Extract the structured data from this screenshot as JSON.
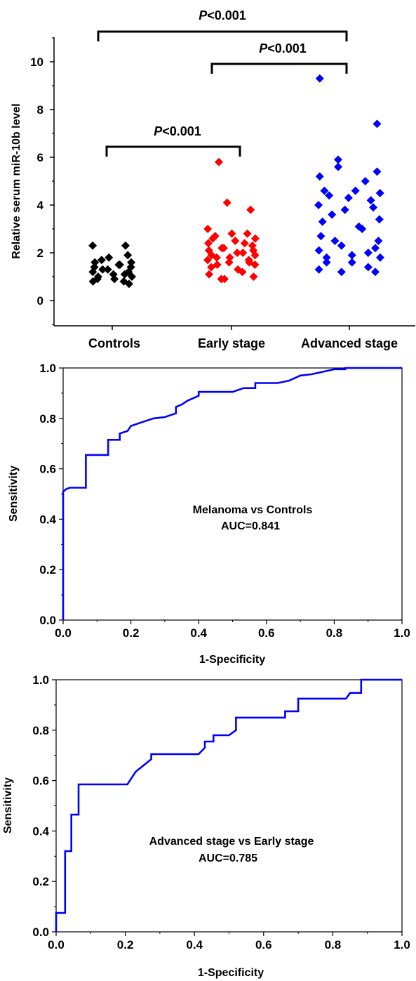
{
  "colors": {
    "controls": "#000000",
    "early_stage": "#ff0000",
    "advanced_stage": "#0000ff",
    "roc_line": "#0000ff",
    "axis": "#000000"
  },
  "chart_data": [
    {
      "type": "scatter",
      "ylabel": "Relative serum miR-10b level",
      "ylim": [
        -1,
        11
      ],
      "yticks": [
        0,
        2,
        4,
        6,
        8,
        10
      ],
      "categories": [
        "Controls",
        "Early stage",
        "Advanced stage"
      ],
      "comparisons": [
        {
          "from": "Controls",
          "to": "Advanced stage",
          "label": "P<0.001"
        },
        {
          "from": "Early stage",
          "to": "Advanced stage",
          "label": "P<0.001"
        },
        {
          "from": "Controls",
          "to": "Early stage",
          "label": "P<0.001"
        }
      ],
      "series": [
        {
          "category": "Controls",
          "color": "#000000",
          "values": [
            2.3,
            2.3,
            1.9,
            1.8,
            1.7,
            1.6,
            1.6,
            1.5,
            1.5,
            1.4,
            1.4,
            1.3,
            1.3,
            1.2,
            1.2,
            1.1,
            1.1,
            1.0,
            1.0,
            0.9,
            0.9,
            0.8,
            0.8,
            0.7
          ]
        },
        {
          "category": "Early stage",
          "color": "#ff0000",
          "values": [
            5.8,
            4.1,
            3.8,
            3.0,
            2.8,
            2.8,
            2.7,
            2.6,
            2.6,
            2.5,
            2.4,
            2.4,
            2.3,
            2.2,
            2.2,
            2.1,
            2.1,
            2.0,
            2.0,
            1.9,
            1.9,
            1.8,
            1.8,
            1.7,
            1.7,
            1.6,
            1.6,
            1.5,
            1.5,
            1.4,
            1.3,
            1.2,
            1.1,
            1.0,
            0.9,
            0.9
          ]
        },
        {
          "category": "Advanced stage",
          "color": "#0000ff",
          "values": [
            9.3,
            7.4,
            5.9,
            5.6,
            5.4,
            5.2,
            5.0,
            4.6,
            4.6,
            4.5,
            4.4,
            4.3,
            4.2,
            4.0,
            3.9,
            3.8,
            3.6,
            3.4,
            3.3,
            3.1,
            3.0,
            2.7,
            2.5,
            2.5,
            2.3,
            2.2,
            2.1,
            2.0,
            1.9,
            1.8,
            1.8,
            1.6,
            1.6,
            1.4,
            1.3,
            1.2,
            1.2
          ]
        }
      ]
    },
    {
      "type": "line",
      "xlabel": "1-Specificity",
      "ylabel": "Sensitivity",
      "xlim": [
        0,
        1
      ],
      "ylim": [
        0,
        1
      ],
      "xticks": [
        "0.0",
        "0.2",
        "0.4",
        "0.6",
        "0.8",
        "1.0"
      ],
      "yticks": [
        "0.0",
        "0.2",
        "0.4",
        "0.6",
        "0.8",
        "1.0"
      ],
      "annotation": [
        "Melanoma vs Controls",
        "AUC=0.841"
      ],
      "points": [
        [
          0,
          0
        ],
        [
          0,
          0.51
        ],
        [
          0.01,
          0.52
        ],
        [
          0.02,
          0.525
        ],
        [
          0.067,
          0.525
        ],
        [
          0.067,
          0.655
        ],
        [
          0.133,
          0.655
        ],
        [
          0.133,
          0.715
        ],
        [
          0.167,
          0.715
        ],
        [
          0.167,
          0.74
        ],
        [
          0.19,
          0.75
        ],
        [
          0.2,
          0.77
        ],
        [
          0.233,
          0.785
        ],
        [
          0.267,
          0.8
        ],
        [
          0.3,
          0.805
        ],
        [
          0.333,
          0.82
        ],
        [
          0.333,
          0.845
        ],
        [
          0.35,
          0.855
        ],
        [
          0.367,
          0.87
        ],
        [
          0.4,
          0.89
        ],
        [
          0.4,
          0.905
        ],
        [
          0.433,
          0.905
        ],
        [
          0.5,
          0.905
        ],
        [
          0.533,
          0.92
        ],
        [
          0.567,
          0.92
        ],
        [
          0.567,
          0.94
        ],
        [
          0.633,
          0.94
        ],
        [
          0.667,
          0.95
        ],
        [
          0.7,
          0.97
        ],
        [
          0.733,
          0.975
        ],
        [
          0.767,
          0.985
        ],
        [
          0.8,
          0.995
        ],
        [
          0.833,
          0.995
        ],
        [
          0.833,
          1.0
        ],
        [
          1.0,
          1.0
        ]
      ]
    },
    {
      "type": "line",
      "xlabel": "1-Specificity",
      "ylabel": "Sensitivity",
      "xlim": [
        0,
        1
      ],
      "ylim": [
        0,
        1
      ],
      "xticks": [
        "0.0",
        "0.2",
        "0.4",
        "0.6",
        "0.8",
        "1.0"
      ],
      "yticks": [
        "0.0",
        "0.2",
        "0.4",
        "0.6",
        "0.8",
        "1.0"
      ],
      "annotation": [
        "Advanced stage vs Early stage",
        "AUC=0.785"
      ],
      "points": [
        [
          0,
          0
        ],
        [
          0,
          0.075
        ],
        [
          0.026,
          0.075
        ],
        [
          0.026,
          0.32
        ],
        [
          0.044,
          0.32
        ],
        [
          0.044,
          0.465
        ],
        [
          0.065,
          0.465
        ],
        [
          0.065,
          0.585
        ],
        [
          0.206,
          0.585
        ],
        [
          0.23,
          0.635
        ],
        [
          0.275,
          0.685
        ],
        [
          0.275,
          0.705
        ],
        [
          0.412,
          0.705
        ],
        [
          0.43,
          0.73
        ],
        [
          0.43,
          0.755
        ],
        [
          0.455,
          0.755
        ],
        [
          0.455,
          0.78
        ],
        [
          0.5,
          0.78
        ],
        [
          0.52,
          0.8
        ],
        [
          0.52,
          0.85
        ],
        [
          0.662,
          0.85
        ],
        [
          0.662,
          0.875
        ],
        [
          0.7,
          0.875
        ],
        [
          0.7,
          0.925
        ],
        [
          0.838,
          0.925
        ],
        [
          0.85,
          0.948
        ],
        [
          0.882,
          0.948
        ],
        [
          0.882,
          1.0
        ],
        [
          1.0,
          1.0
        ]
      ]
    }
  ]
}
